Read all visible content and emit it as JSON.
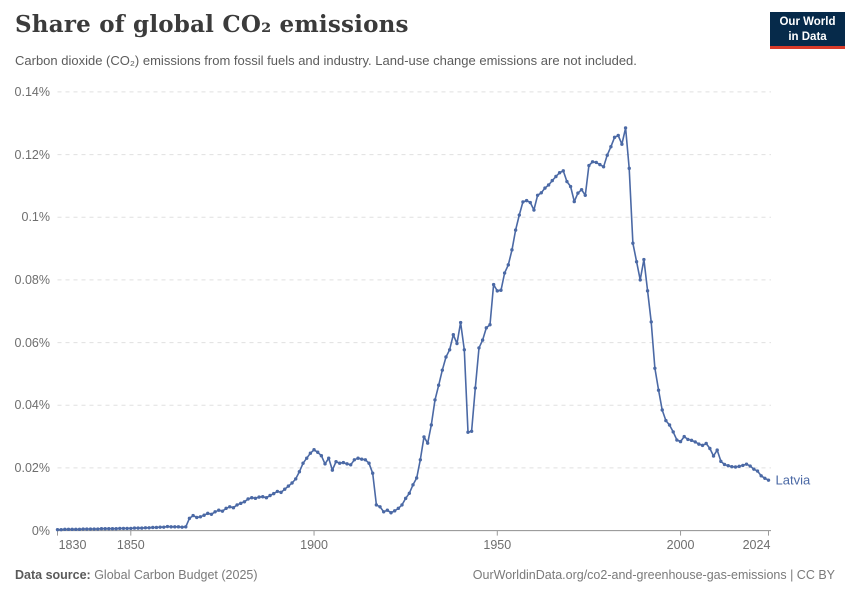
{
  "header": {
    "title": "Share of global CO₂ emissions",
    "subtitle": "Carbon dioxide (CO₂) emissions from fossil fuels and industry. Land-use change emissions are not included.",
    "logo": {
      "line1": "Our World",
      "line2": "in Data",
      "bg_color": "#062a4a",
      "accent_color": "#d93b2a"
    }
  },
  "chart_data": {
    "type": "line",
    "title": "Share of global CO₂ emissions",
    "entity": "Latvia",
    "unit": "%",
    "line_color": "#4b69a5",
    "grid": "dashed horizontal gridlines",
    "legend_position": "end-of-line label",
    "x_range": [
      1830,
      2024
    ],
    "x_step": 1,
    "y_range": [
      0,
      0.14
    ],
    "x_tick_years": [
      1830,
      1850,
      1900,
      1950,
      2000,
      2024
    ],
    "x_tick_labels": [
      "1830",
      "1850",
      "1900",
      "1950",
      "2000",
      "2024"
    ],
    "y_tick_values": [
      0,
      0.02,
      0.04,
      0.06,
      0.08,
      0.1,
      0.12,
      0.14
    ],
    "y_tick_labels": [
      "0%",
      "0.02%",
      "0.04%",
      "0.06%",
      "0.08%",
      "0.1%",
      "0.12%",
      "0.14%"
    ],
    "values": [
      0.0003,
      0.0003,
      0.0004,
      0.0004,
      0.0004,
      0.0004,
      0.0004,
      0.0005,
      0.0005,
      0.0005,
      0.0005,
      0.0005,
      0.0006,
      0.0006,
      0.0006,
      0.0006,
      0.0006,
      0.0007,
      0.0007,
      0.0007,
      0.0007,
      0.0008,
      0.0008,
      0.0008,
      0.0009,
      0.0009,
      0.001,
      0.001,
      0.0011,
      0.0011,
      0.0013,
      0.0012,
      0.0012,
      0.0012,
      0.0011,
      0.0012,
      0.0039,
      0.0048,
      0.0042,
      0.0044,
      0.0049,
      0.0055,
      0.0052,
      0.006,
      0.0065,
      0.0062,
      0.0071,
      0.0076,
      0.0073,
      0.0082,
      0.0087,
      0.0092,
      0.0101,
      0.0105,
      0.0103,
      0.0107,
      0.0108,
      0.0105,
      0.0112,
      0.0118,
      0.0125,
      0.0122,
      0.0132,
      0.0142,
      0.0152,
      0.0165,
      0.0188,
      0.0215,
      0.0231,
      0.0247,
      0.0258,
      0.025,
      0.0239,
      0.0213,
      0.0231,
      0.0193,
      0.022,
      0.0215,
      0.0217,
      0.0213,
      0.021,
      0.0226,
      0.0231,
      0.0228,
      0.0226,
      0.0215,
      0.0183,
      0.0082,
      0.0076,
      0.006,
      0.0065,
      0.0057,
      0.0063,
      0.0071,
      0.0082,
      0.0103,
      0.0119,
      0.0146,
      0.0168,
      0.0226,
      0.0299,
      0.0279,
      0.0337,
      0.0417,
      0.0464,
      0.0512,
      0.0554,
      0.0577,
      0.0625,
      0.0597,
      0.0664,
      0.0577,
      0.0314,
      0.0317,
      0.0455,
      0.0583,
      0.0608,
      0.0647,
      0.0657,
      0.0785,
      0.0765,
      0.0767,
      0.0822,
      0.0848,
      0.0896,
      0.0959,
      0.1007,
      0.1049,
      0.1053,
      0.1047,
      0.1023,
      0.107,
      0.1078,
      0.1093,
      0.1103,
      0.1117,
      0.113,
      0.1142,
      0.1148,
      0.1114,
      0.1098,
      0.105,
      0.1077,
      0.1088,
      0.107,
      0.1165,
      0.1177,
      0.1175,
      0.1168,
      0.1161,
      0.1198,
      0.1225,
      0.1255,
      0.1261,
      0.1233,
      0.1285,
      0.1156,
      0.0917,
      0.0858,
      0.08,
      0.0865,
      0.0765,
      0.0666,
      0.0518,
      0.0448,
      0.0385,
      0.0351,
      0.0337,
      0.0315,
      0.0289,
      0.0284,
      0.03,
      0.0291,
      0.0288,
      0.0283,
      0.0276,
      0.0272,
      0.0278,
      0.0262,
      0.0238,
      0.0257,
      0.0221,
      0.0211,
      0.0207,
      0.0204,
      0.0203,
      0.0205,
      0.0208,
      0.0212,
      0.0206,
      0.0196,
      0.019,
      0.0175,
      0.0167,
      0.0161
    ]
  },
  "footer": {
    "source_label": "Data source:",
    "source_text": " Global Carbon Budget (2025)",
    "link_text": "OurWorldinData.org/co2-and-greenhouse-gas-emissions | CC BY"
  }
}
